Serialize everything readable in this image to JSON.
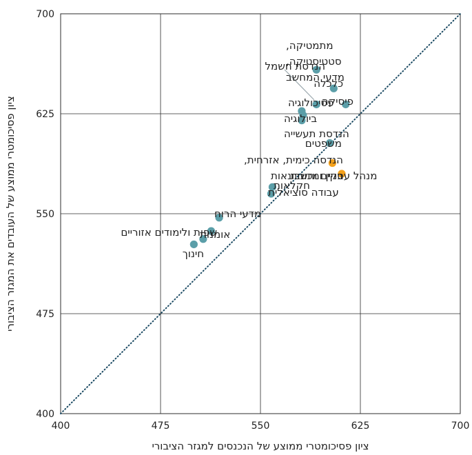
{
  "chart_data": {
    "type": "scatter",
    "xlabel": "ציון פסיכומטרי ממוצע של הנכנסים למגזר הציבורי",
    "ylabel": "ציון פסיכומטרי ממוצע של העובדים את המגזר הציבורי",
    "xlim": [
      400,
      700
    ],
    "ylim": [
      400,
      700
    ],
    "x_ticks": [
      400,
      475,
      550,
      625,
      700
    ],
    "y_ticks": [
      400,
      475,
      550,
      625,
      700
    ],
    "grid": true,
    "diagonal": "y = x",
    "colors": {
      "teal": "#5b9ea8",
      "orange": "#f4a11c",
      "diagonal": "#1b4a63"
    },
    "points": [
      {
        "label": "הנדסת חשמל",
        "x": 592,
        "y": 658,
        "color": "teal"
      },
      {
        "label": "כלכלה",
        "x": 605,
        "y": 644,
        "color": "teal"
      },
      {
        "label": "פיסיקה",
        "x": 614,
        "y": 632,
        "color": "teal"
      },
      {
        "label": "מתמטיקה, סטטיסטיקה, מדעי המחשב",
        "x": 592,
        "y": 632,
        "color": "teal"
      },
      {
        "label": "פסיכולוגיה",
        "x": 581,
        "y": 627,
        "color": "teal"
      },
      {
        "label": "ביולוגיה",
        "x": 582,
        "y": 624,
        "color": "teal"
      },
      {
        "label": "הנדסת תעשייה",
        "x": 581,
        "y": 620,
        "color": "teal"
      },
      {
        "label": "משפטים",
        "x": 602,
        "y": 603,
        "color": "teal"
      },
      {
        "label": "הנדסה כימית, אזרחית, בניין ומכונות",
        "x": 604,
        "y": 588,
        "color": "orange"
      },
      {
        "label": "חקלאות",
        "x": 611,
        "y": 580,
        "color": "orange"
      },
      {
        "label": "מנהל עסקים וחשבונאות",
        "x": 559,
        "y": 570,
        "color": "teal"
      },
      {
        "label": "עבודה סוציאלית",
        "x": 558,
        "y": 565,
        "color": "teal"
      },
      {
        "label": "מדעי הרוח",
        "x": 519,
        "y": 547,
        "color": "teal"
      },
      {
        "label": "שפות ולימודים אזוריים",
        "x": 513,
        "y": 537,
        "color": "teal"
      },
      {
        "label": "אומנות",
        "x": 507,
        "y": 531,
        "color": "teal"
      },
      {
        "label": "חינוך",
        "x": 500,
        "y": 527,
        "color": "teal"
      }
    ]
  }
}
